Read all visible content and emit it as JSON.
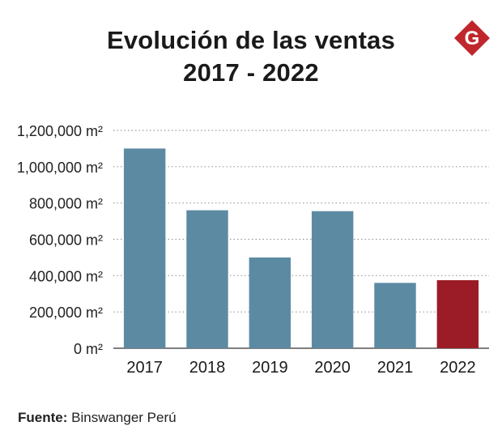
{
  "header": {
    "title_line1": "Evolución de las ventas",
    "title_line2": "2017 - 2022",
    "logo_letter": "G"
  },
  "footer": {
    "source_label": "Fuente:",
    "source_value": "Binswanger Perú"
  },
  "colors": {
    "bar": "#5d8aa3",
    "highlight": "#9b1c26",
    "logo": "#c0272d",
    "grid": "#9a9a9a"
  },
  "chart_data": {
    "type": "bar",
    "title": "Evolución de las ventas 2017 - 2022",
    "xlabel": "",
    "ylabel": "",
    "unit": "m²",
    "categories": [
      "2017",
      "2018",
      "2019",
      "2020",
      "2021",
      "2022"
    ],
    "values": [
      1100000,
      760000,
      500000,
      755000,
      360000,
      375000
    ],
    "highlight_index": 5,
    "ylim": [
      0,
      1200000
    ],
    "yticks": [
      0,
      200000,
      400000,
      600000,
      800000,
      1000000,
      1200000
    ],
    "ytick_labels": [
      "0 m²",
      "200,000 m²",
      "400,000 m²",
      "600,000 m²",
      "800,000 m²",
      "1,000,000 m²",
      "1,200,000 m²"
    ],
    "grid": true,
    "grid_style": "dotted",
    "legend": "none"
  }
}
